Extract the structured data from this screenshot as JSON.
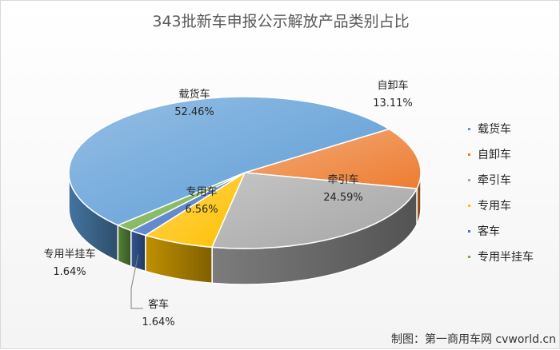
{
  "chart_data": {
    "type": "pie",
    "title": "343批新车申报公示解放产品类别占比",
    "categories": [
      "载货车",
      "自卸车",
      "牵引车",
      "专用车",
      "客车",
      "专用半挂车"
    ],
    "values": [
      52.46,
      13.11,
      24.59,
      6.56,
      1.64,
      1.64
    ],
    "value_labels": [
      "52.46%",
      "13.11%",
      "24.59%",
      "6.56%",
      "1.64%",
      "1.64%"
    ],
    "colors": [
      "#5b9bd5",
      "#ed7d31",
      "#a5a5a5",
      "#ffc000",
      "#4472c4",
      "#70ad47"
    ],
    "legend_position": "right"
  },
  "footer": {
    "credit": "制图：第一商用车网 cvworld.cn"
  }
}
